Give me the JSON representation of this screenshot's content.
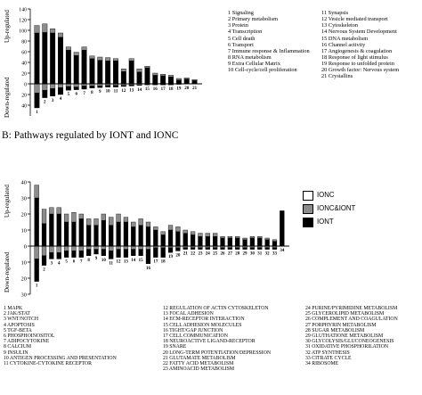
{
  "section_b_title": "B: Pathways regulated by IONT and IONC",
  "key": {
    "colors": {
      "IONC": "#ffffff",
      "IONC&IONT": "#8c8c8c",
      "IONT": "#000000"
    },
    "labels": [
      "IONC",
      "IONC&IONT",
      "IONT"
    ]
  },
  "chart_data": [
    {
      "type": "bar",
      "ylabel_up": "Up-regulated",
      "ylabel_down": "Down-regulated",
      "ylim": [
        -60,
        140
      ],
      "yticks": [
        -40,
        -20,
        0,
        20,
        40,
        60,
        80,
        100,
        120,
        140
      ],
      "grid": false,
      "categories": [
        "1",
        "2",
        "3",
        "4",
        "5",
        "6",
        "7",
        "8",
        "9",
        "10",
        "11",
        "12",
        "13",
        "14",
        "15",
        "16",
        "17",
        "18",
        "19",
        "20",
        "21"
      ],
      "series": [
        {
          "name": "IONC",
          "up": [
            0,
            0,
            0,
            0,
            0,
            0,
            0,
            0,
            0,
            0,
            0,
            0,
            0,
            0,
            0,
            0,
            0,
            0,
            0,
            0,
            0
          ],
          "down": [
            0,
            0,
            0,
            0,
            0,
            0,
            0,
            0,
            0,
            0,
            0,
            0,
            0,
            0,
            0,
            0,
            0,
            0,
            0,
            0,
            0
          ]
        },
        {
          "name": "IONC&IONT",
          "up": [
            14,
            16,
            8,
            8,
            6,
            6,
            6,
            5,
            6,
            6,
            4,
            5,
            4,
            6,
            3,
            4,
            3,
            3,
            3,
            2,
            2
          ],
          "down": [
            -17,
            -12,
            -9,
            -7,
            -5,
            -6,
            -4,
            -4,
            -4,
            -3,
            -3,
            -3,
            -2,
            -2,
            -1,
            -1,
            -1,
            -1,
            0,
            0,
            0
          ]
        },
        {
          "name": "IONT",
          "up": [
            95,
            96,
            95,
            87,
            63,
            53,
            63,
            47,
            44,
            43,
            43,
            23,
            43,
            22,
            30,
            16,
            15,
            13,
            7,
            9,
            6
          ],
          "down": [
            -28,
            -14,
            -14,
            -13,
            -7,
            -5,
            -6,
            -4,
            -3,
            -3,
            -3,
            -2,
            -2,
            -1,
            -1,
            -1,
            -1,
            -1,
            -1,
            0,
            0
          ]
        }
      ],
      "category_names": [
        "1 Signaling",
        "2 Primary metabolism",
        "3 Protein",
        "4 Transcription",
        "5 Cell death",
        "6 Transport",
        "7 Immune response & Inflammation",
        "8 RNA metabolism",
        "9 Extra Cellular Matrix",
        "10 Cell-cycle/cell proliferation",
        "11 Synapsis",
        "12 Vesicle mediated transport",
        "13 Cytoskeleton",
        "14 Nervous System Development",
        "15 DNA metabolism",
        "16 Channel activity",
        "17 Angiogenesis & coagulation",
        "18 Response of light stimulus",
        "19 Response to unfolded protein",
        "20 Growth factor: Nervous system",
        "21 Crystallins"
      ]
    },
    {
      "type": "bar",
      "title": "B: Pathways regulated by IONT and IONC",
      "ylabel_up": "Up-regulated",
      "ylabel_down": "Down-regulated",
      "ylim": [
        -30,
        40
      ],
      "yticks": [
        -30,
        -20,
        -10,
        0,
        10,
        20,
        30,
        40
      ],
      "grid": false,
      "categories": [
        "1",
        "2",
        "3",
        "4",
        "5",
        "6",
        "7",
        "8",
        "9",
        "10",
        "11",
        "12",
        "13",
        "14",
        "15",
        "16",
        "17",
        "18",
        "19",
        "20",
        "21",
        "22",
        "23",
        "24",
        "25",
        "26",
        "27",
        "28",
        "29",
        "30",
        "31",
        "32",
        "33",
        "34"
      ],
      "series": [
        {
          "name": "IONC",
          "up": [
            0,
            0,
            0,
            0,
            0,
            0,
            0,
            0,
            0,
            0,
            0,
            0,
            0,
            0,
            0,
            0,
            0,
            0,
            0,
            0,
            0,
            0,
            0,
            0,
            0,
            0,
            0,
            0,
            0,
            0,
            0,
            0,
            0,
            0
          ],
          "down": [
            0,
            0,
            0,
            0,
            0,
            0,
            0,
            0,
            0,
            0,
            0,
            0,
            0,
            0,
            0,
            0,
            0,
            0,
            0,
            0,
            0,
            0,
            0,
            0,
            0,
            0,
            0,
            0,
            0,
            0,
            0,
            0,
            0,
            0
          ]
        },
        {
          "name": "IONC&IONT",
          "up": [
            8,
            9,
            4,
            4,
            5,
            6,
            3,
            4,
            4,
            4,
            5,
            5,
            3,
            3,
            4,
            3,
            2,
            2,
            3,
            3,
            2,
            2,
            2,
            2,
            2,
            1,
            1,
            1,
            1,
            1,
            1,
            1,
            1,
            0
          ],
          "down": [
            -8,
            -6,
            -4,
            -4,
            -3,
            -3,
            -3,
            -2,
            -2,
            -2,
            -3,
            -2,
            -2,
            -2,
            -2,
            -2,
            -1,
            -1,
            -1,
            -1,
            -1,
            -1,
            -1,
            -1,
            -1,
            -1,
            -1,
            -1,
            -1,
            -1,
            -1,
            -1,
            -1,
            0
          ]
        },
        {
          "name": "IONT",
          "up": [
            30,
            14,
            20,
            20,
            15,
            15,
            17,
            13,
            13,
            16,
            13,
            15,
            15,
            12,
            13,
            12,
            10,
            7,
            10,
            9,
            8,
            7,
            6,
            6,
            6,
            5,
            5,
            5,
            4,
            5,
            5,
            4,
            3,
            22
          ],
          "down": [
            -14,
            -6,
            -4,
            -4,
            -4,
            -4,
            -4,
            -4,
            -3,
            -4,
            -5,
            -5,
            -5,
            -4,
            -4,
            -9,
            -6,
            -6,
            -3,
            -2,
            -1,
            -1,
            -1,
            -1,
            -1,
            -1,
            -1,
            -1,
            -1,
            -1,
            -1,
            -1,
            -1,
            0
          ]
        }
      ],
      "category_names": [
        "1 MAPK",
        "2 JAK/STAT",
        "3 WNT/NOTCH",
        "4 APOPTOSIS",
        "5 TGF-BETA",
        "6 PHOSPHOINOSITOL",
        "7 ADIPOCYTOKINE",
        "8 CALCIUM",
        "9 INSULIN",
        "10 ANTIGEN PROCESSING AND PRESENTATION",
        "11 CYTOKINE-CYTOKINE RECEPTOR",
        "12 REGULATION OF ACTIN CYTOSKELETON",
        "13 FOCAL ADHESION",
        "14 ECM-RECEPTOR INTERACTION",
        "15 CELL ADHESION MOLECULES",
        "16 TIGHT/GAP JUNCTION",
        "17 CELL COMMUNICATION",
        "18 NEUROACTIVE LIGAND-RECEPTOR",
        "19 SNARE",
        "20 LONG-TERM POTENTIATION/DEPRESSION",
        "21 GLUTAMATE METABOLISM",
        "22 FATTY ACID METABOLISM",
        "23 AMINOACID METABOLISM",
        "24 PURINE/PYRIMIDINE METABOLISM",
        "25 GLYCEROLIPID METABOLISM",
        "26 COMPLEMENT AND COAGULATION",
        "27 PORPHYRIN METABOLISM",
        "28 SUGAR METABOLISM",
        "29 GLUTHATIONE METABOLISM",
        "30 GLYCOLYSIS/GLUCONEOGENESIS",
        "31 OXIDATIVE PHOSPHORILATION",
        "32 ATP SYNTHESIS",
        "33 CITRATE CYCLE",
        "34 RIBOSOME"
      ]
    }
  ]
}
